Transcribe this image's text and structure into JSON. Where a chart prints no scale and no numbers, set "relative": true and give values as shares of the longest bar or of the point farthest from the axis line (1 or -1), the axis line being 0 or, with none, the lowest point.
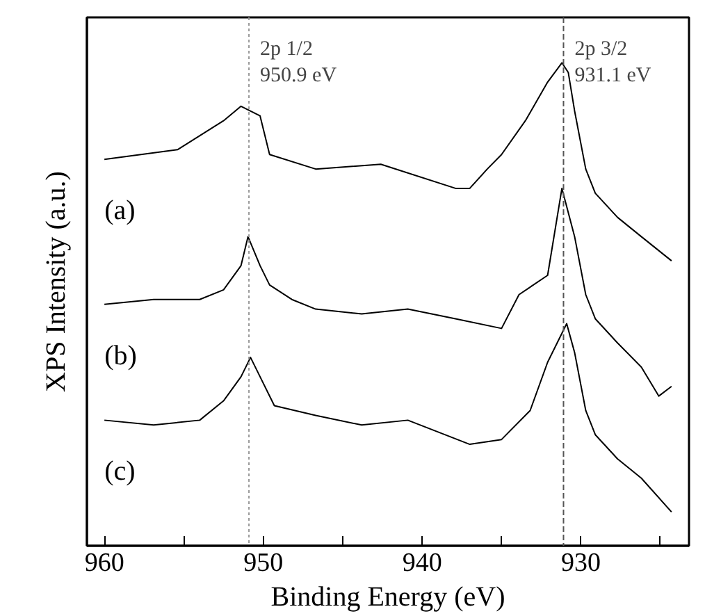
{
  "chart_data": {
    "type": "line",
    "relative": true,
    "xlabel": "Binding Energy (eV)",
    "ylabel": "XPS Intensity (a.u.)",
    "xlim": [
      961.1,
      923.2
    ],
    "xticks": [
      960,
      {
        "value": 955,
        "label": null
      },
      950,
      {
        "value": 945,
        "label": null
      },
      940,
      {
        "value": 935,
        "label": null
      },
      930,
      {
        "value": 925,
        "label": null
      }
    ],
    "tick_labels": "x",
    "grid": false,
    "marker": "none",
    "line_style": "solid",
    "series": [
      {
        "name": "(a)",
        "color": "#000000",
        "x": [
          960,
          955.4,
          952.5,
          951.4,
          950.2,
          949.6,
          946.7,
          942.6,
          937.9,
          937.0,
          935.9,
          935.0,
          933.5,
          932.1,
          931.2,
          930.8,
          930.4,
          929.7,
          929.1,
          927.7,
          926.2,
          924.3
        ],
        "values": [
          0.8,
          0.82,
          0.88,
          0.91,
          0.89,
          0.81,
          0.78,
          0.79,
          0.74,
          0.74,
          0.78,
          0.81,
          0.88,
          0.96,
          1.0,
          0.98,
          0.9,
          0.78,
          0.73,
          0.68,
          0.64,
          0.59
        ]
      },
      {
        "name": "(b)",
        "color": "#000000",
        "x": [
          960,
          956.9,
          954,
          952.5,
          951.4,
          950.96,
          950.2,
          949.6,
          948.2,
          946.7,
          943.8,
          940.9,
          937.9,
          935.0,
          933.9,
          932.1,
          931.2,
          930.4,
          929.7,
          929.1,
          927.7,
          926.2,
          925.1,
          924.3
        ],
        "values": [
          0.5,
          0.51,
          0.51,
          0.53,
          0.58,
          0.64,
          0.58,
          0.54,
          0.51,
          0.49,
          0.48,
          0.49,
          0.47,
          0.45,
          0.52,
          0.56,
          0.74,
          0.64,
          0.52,
          0.47,
          0.42,
          0.37,
          0.31,
          0.33
        ]
      },
      {
        "name": "(c)",
        "color": "#000000",
        "x": [
          960,
          956.9,
          954,
          952.5,
          951.4,
          950.8,
          950.2,
          949.3,
          946.7,
          943.8,
          940.9,
          937.0,
          935.0,
          933.2,
          932.1,
          930.9,
          930.4,
          929.7,
          929.1,
          927.7,
          926.2,
          924.3
        ],
        "values": [
          0.26,
          0.25,
          0.26,
          0.3,
          0.35,
          0.39,
          0.35,
          0.29,
          0.27,
          0.25,
          0.26,
          0.21,
          0.22,
          0.28,
          0.38,
          0.46,
          0.4,
          0.28,
          0.23,
          0.18,
          0.14,
          0.07
        ]
      }
    ],
    "ref_lines": [
      {
        "axis": "x",
        "value": 950.9,
        "label": "2p 1/2\n950.9 eV",
        "color": "#999999",
        "line_style": "dotted"
      },
      {
        "axis": "x",
        "value": 931.1,
        "label": "2p 3/2\n931.1 eV",
        "color": "#555555",
        "line_style": "dashed"
      }
    ]
  }
}
